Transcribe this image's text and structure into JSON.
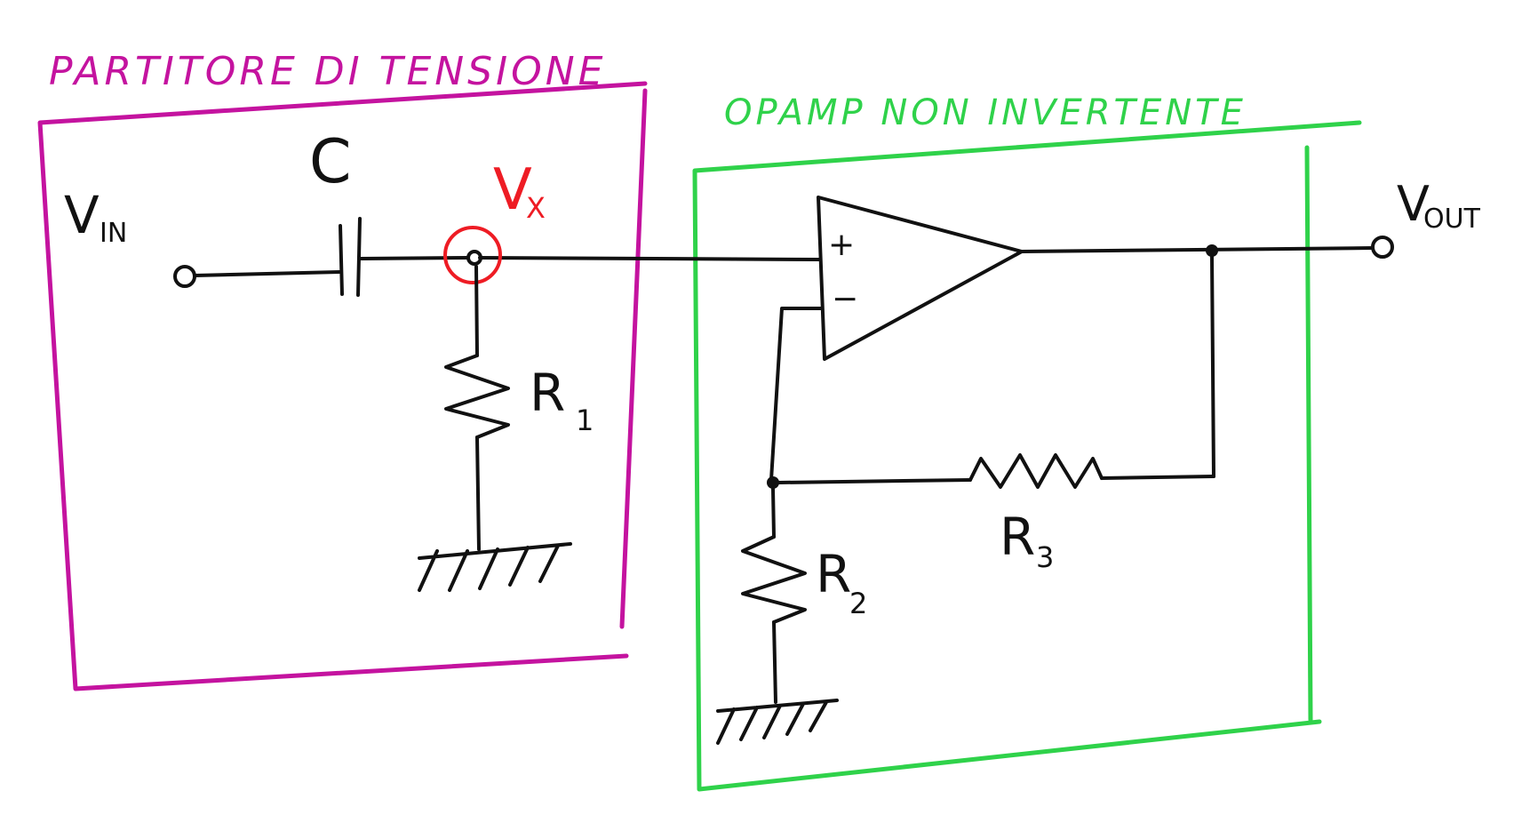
{
  "sections": {
    "divider": {
      "title": "PARTITORE DI TENSIONE",
      "color": "#c4139f"
    },
    "opamp": {
      "title": "OPAMP NON INVERTENTE",
      "color": "#2fd24a"
    }
  },
  "labels": {
    "vin_main": "V",
    "vin_sub": "IN",
    "capacitor": "C",
    "vx_main": "V",
    "vx_sub": "X",
    "r1_main": "R",
    "r1_sub": "1",
    "plus": "+",
    "minus": "−",
    "vout_main": "V",
    "vout_sub": "OUT",
    "r3_main": "R",
    "r3_sub": "3",
    "r2_main": "R",
    "r2_sub": "2"
  },
  "colors": {
    "ink": "#111111",
    "highlight": "#ee1c24"
  }
}
